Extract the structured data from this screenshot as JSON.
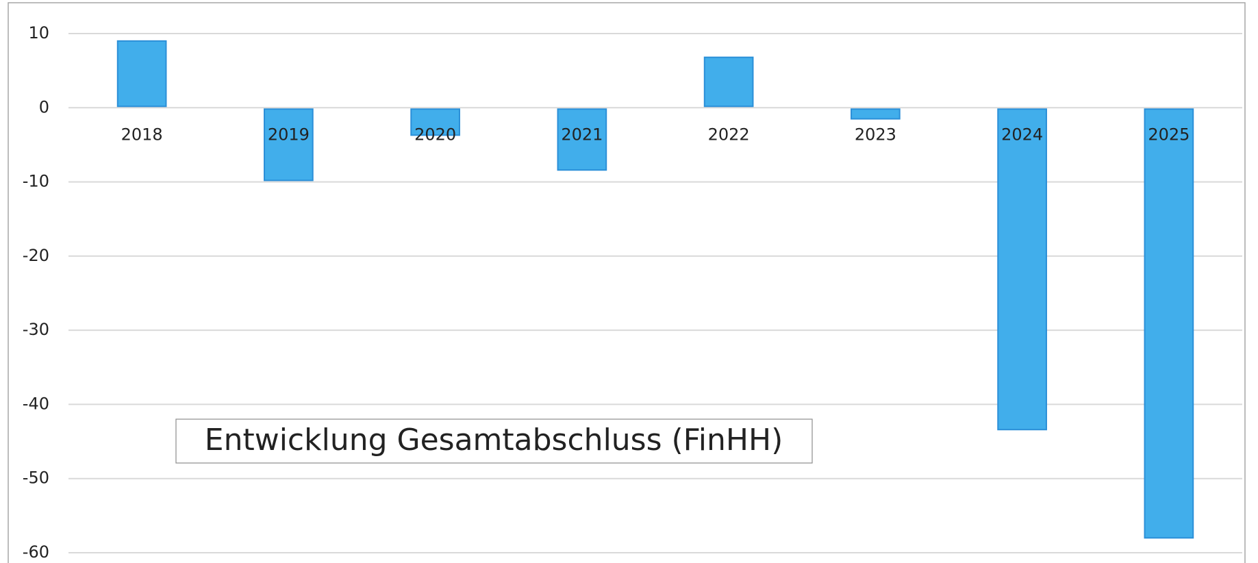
{
  "chart_data": {
    "type": "bar",
    "title": "Entwicklung Gesamtabschluss (FinHH)",
    "categories": [
      "2018",
      "2019",
      "2020",
      "2021",
      "2022",
      "2023",
      "2024",
      "2025"
    ],
    "values": [
      9,
      -9.8,
      -3.7,
      -8.4,
      6.8,
      -1.5,
      -43.4,
      -58
    ],
    "color": "#41aeeb",
    "ylim": [
      -60,
      10
    ],
    "yticks": [
      10,
      0,
      -10,
      -20,
      -30,
      -40,
      -50,
      -60
    ],
    "grid": true
  }
}
